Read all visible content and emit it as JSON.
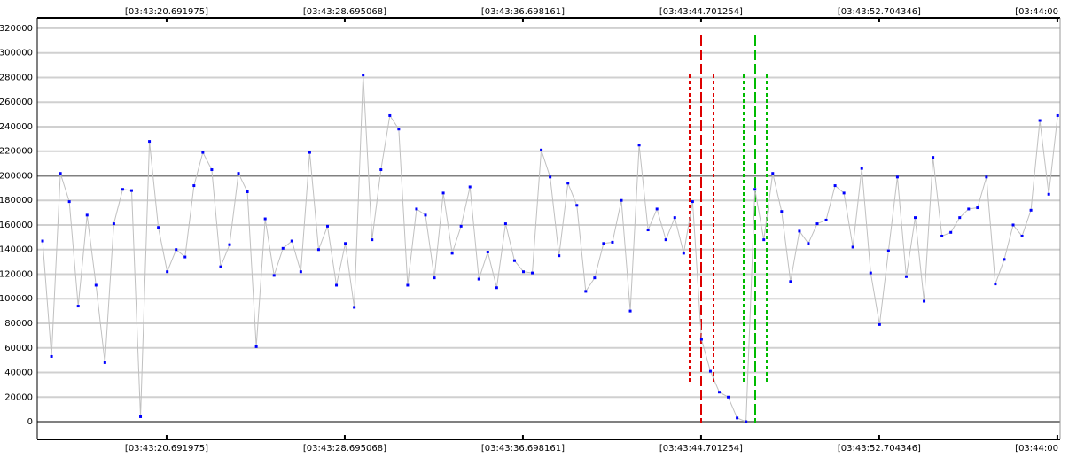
{
  "chart_data": {
    "type": "line",
    "x": [
      15.12,
      15.52,
      15.92,
      16.32,
      16.72,
      17.12,
      17.52,
      17.92,
      18.32,
      18.72,
      19.12,
      19.52,
      19.92,
      20.32,
      20.72,
      21.12,
      21.52,
      21.92,
      22.32,
      22.72,
      23.12,
      23.52,
      23.92,
      24.32,
      24.72,
      25.12,
      25.52,
      25.92,
      26.32,
      26.72,
      27.12,
      27.52,
      27.92,
      28.32,
      28.72,
      29.12,
      29.52,
      29.92,
      30.32,
      30.72,
      31.12,
      31.52,
      31.92,
      32.32,
      32.72,
      33.12,
      33.52,
      33.92,
      34.32,
      34.72,
      35.12,
      35.52,
      35.92,
      36.32,
      36.72,
      37.12,
      37.52,
      37.92,
      38.32,
      38.72,
      39.12,
      39.52,
      39.92,
      40.32,
      40.72,
      41.12,
      41.52,
      41.92,
      42.32,
      42.72,
      43.12,
      43.52,
      43.92,
      44.32,
      44.72,
      45.12,
      45.52,
      45.92,
      46.32,
      46.72,
      47.12,
      47.52,
      47.92,
      48.32,
      48.72,
      49.12,
      49.52,
      49.92,
      50.32,
      50.72,
      51.12,
      51.52,
      51.92,
      52.32,
      52.72,
      53.12,
      53.52,
      53.92,
      54.32,
      54.72,
      55.12,
      55.52,
      55.92,
      56.32,
      56.72,
      57.12,
      57.52,
      57.92,
      58.32,
      58.72,
      59.12,
      59.52,
      59.92,
      60.32,
      60.72
    ],
    "series": [
      {
        "line_color": "#c0c0c0",
        "color": "#0000ff",
        "values": [
          147000,
          53000,
          202000,
          179000,
          94000,
          168000,
          111000,
          48000,
          161000,
          189000,
          188000,
          4000,
          228000,
          158000,
          122000,
          140000,
          134000,
          192000,
          219000,
          205000,
          126000,
          144000,
          202000,
          187000,
          61000,
          165000,
          119000,
          141000,
          147000,
          122000,
          219000,
          140000,
          159000,
          111000,
          145000,
          93000,
          282000,
          148000,
          205000,
          249000,
          238000,
          111000,
          173000,
          168000,
          117000,
          186000,
          137000,
          159000,
          191000,
          116000,
          138000,
          109000,
          161000,
          131000,
          122000,
          121000,
          221000,
          199000,
          135000,
          194000,
          176000,
          106000,
          117000,
          145000,
          146000,
          180000,
          90000,
          225000,
          156000,
          173000,
          148000,
          166000,
          137000,
          179000,
          67000,
          41000,
          24000,
          20000,
          3000,
          0,
          189000,
          148000,
          202000,
          171000,
          114000,
          155000,
          145000,
          161000,
          164000,
          192000,
          186000,
          142000,
          206000,
          121000,
          79000,
          139000,
          199000,
          118000,
          166000,
          98000,
          215000,
          151000,
          154000,
          166000,
          173000,
          174000,
          199000,
          112000,
          132000,
          160000,
          151000,
          172000,
          245000,
          185000,
          249000
        ]
      }
    ],
    "xlim": [
      14.88,
      60.83
    ],
    "xticks": [
      {
        "value": 20.691975,
        "label": "[03:43:20.691975]"
      },
      {
        "value": 28.695068,
        "label": "[03:43:28.695068]"
      },
      {
        "value": 36.698161,
        "label": "[03:43:36.698161]"
      },
      {
        "value": 44.701254,
        "label": "[03:43:44.701254]"
      },
      {
        "value": 52.704346,
        "label": "[03:43:52.704346]"
      },
      {
        "value": 60.707439,
        "label": "[03:44:00"
      }
    ],
    "ylim": [
      -14400,
      328600
    ],
    "yticks": [
      0,
      20000,
      40000,
      60000,
      80000,
      100000,
      120000,
      140000,
      160000,
      180000,
      200000,
      220000,
      240000,
      260000,
      280000,
      300000,
      320000
    ],
    "major_yticks": [
      0,
      200000
    ],
    "grid": true
  }
}
